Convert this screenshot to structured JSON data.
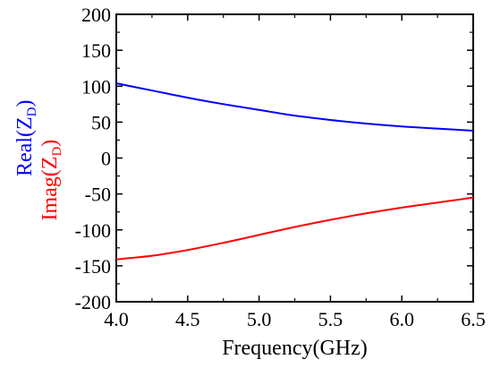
{
  "chart_data": {
    "type": "line",
    "xlabel": "Frequency(GHz)",
    "ylabel_parts": [
      {
        "name": "real",
        "text": "Real(Z",
        "sub": "D",
        "close": ")",
        "color": "#0000ff"
      },
      {
        "name": "imag",
        "text": "Imag(Z",
        "sub": "D",
        "close": ")",
        "color": "#ff0000"
      }
    ],
    "xlim": [
      4.0,
      6.5
    ],
    "ylim": [
      -200,
      200
    ],
    "xticks": [
      4.0,
      4.5,
      5.0,
      5.5,
      6.0,
      6.5
    ],
    "xtick_labels": [
      "4.0",
      "4.5",
      "5.0",
      "5.5",
      "6.0",
      "6.5"
    ],
    "yticks": [
      -200,
      -150,
      -100,
      -50,
      0,
      50,
      100,
      150,
      200
    ],
    "ytick_labels": [
      "-200",
      "-150",
      "-100",
      "-50",
      "0",
      "50",
      "100",
      "150",
      "200"
    ],
    "grid": false,
    "series": [
      {
        "name": "Real(ZD)",
        "color": "#0000ff",
        "x": [
          4.0,
          4.25,
          4.5,
          4.75,
          5.0,
          5.25,
          5.5,
          5.75,
          6.0,
          6.25,
          6.5
        ],
        "y": [
          104,
          94,
          84,
          75,
          67,
          59,
          53,
          48,
          44,
          41,
          38
        ]
      },
      {
        "name": "Imag(ZD)",
        "color": "#ff0000",
        "x": [
          4.0,
          4.25,
          4.5,
          4.75,
          5.0,
          5.25,
          5.5,
          5.75,
          6.0,
          6.25,
          6.5
        ],
        "y": [
          -141,
          -136,
          -128,
          -118,
          -107,
          -96,
          -86,
          -77,
          -69,
          -62,
          -55
        ]
      }
    ]
  }
}
